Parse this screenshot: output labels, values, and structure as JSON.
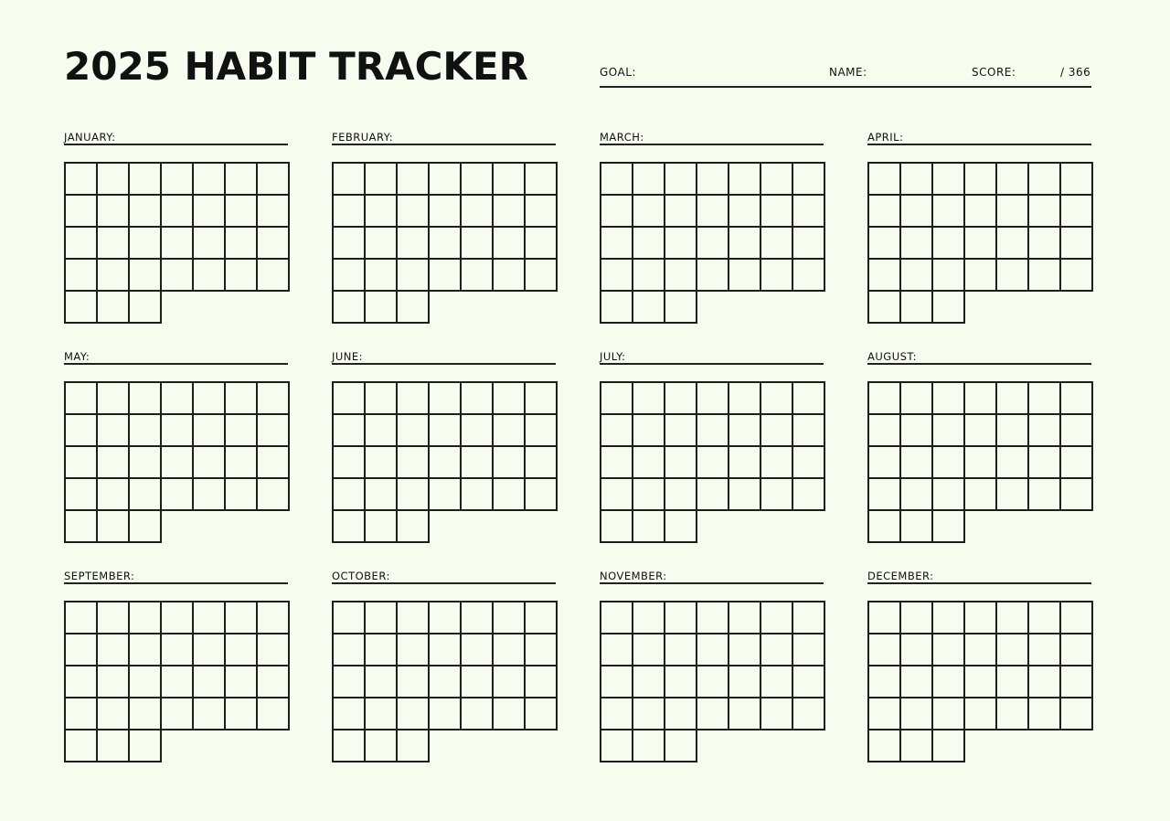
{
  "header": {
    "title": "2025 HABIT TRACKER",
    "goal_label": "GOAL:",
    "name_label": "NAME:",
    "score_label": "SCORE:",
    "score_total": "/ 366"
  },
  "grid": {
    "columns": 7,
    "boxes_per_month": 31
  },
  "months": [
    {
      "label": "JANUARY:"
    },
    {
      "label": "FEBRUARY:"
    },
    {
      "label": "MARCH:"
    },
    {
      "label": "APRIL:"
    },
    {
      "label": "MAY:"
    },
    {
      "label": "JUNE:"
    },
    {
      "label": "JULY:"
    },
    {
      "label": "AUGUST:"
    },
    {
      "label": "SEPTEMBER:"
    },
    {
      "label": "OCTOBER:"
    },
    {
      "label": "NOVEMBER:"
    },
    {
      "label": "DECEMBER:"
    }
  ],
  "colors": {
    "background": "#f7fdee",
    "ink": "#1e1e1e"
  }
}
